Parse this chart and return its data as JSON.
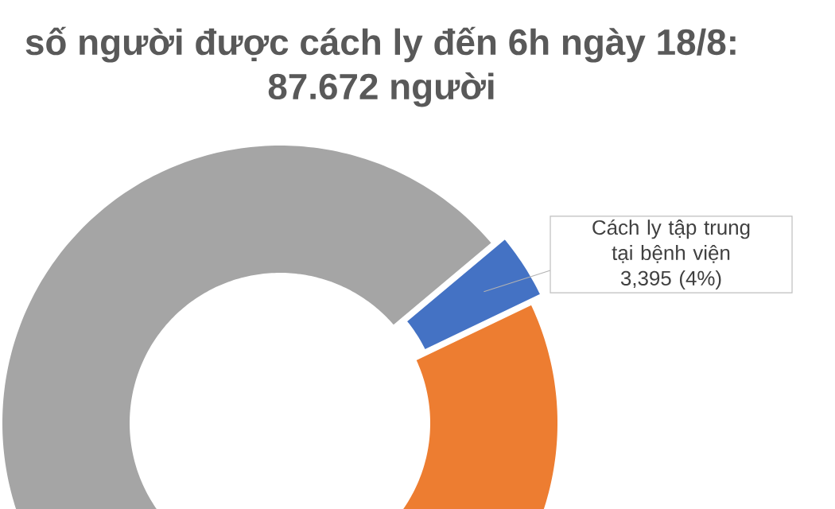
{
  "chart_data": {
    "type": "donut",
    "title": "số người được cách ly đến 6h ngày 18/8: 87.672 người",
    "categories": [
      "Cách ly tập trung tại bệnh viện",
      null,
      null
    ],
    "values": [
      4,
      22,
      74
    ],
    "colors": [
      "#4472c4",
      "#ed7d31",
      "#a5a5a5"
    ],
    "value_labels": [
      "3,395 (4%)",
      null,
      null
    ]
  }
}
